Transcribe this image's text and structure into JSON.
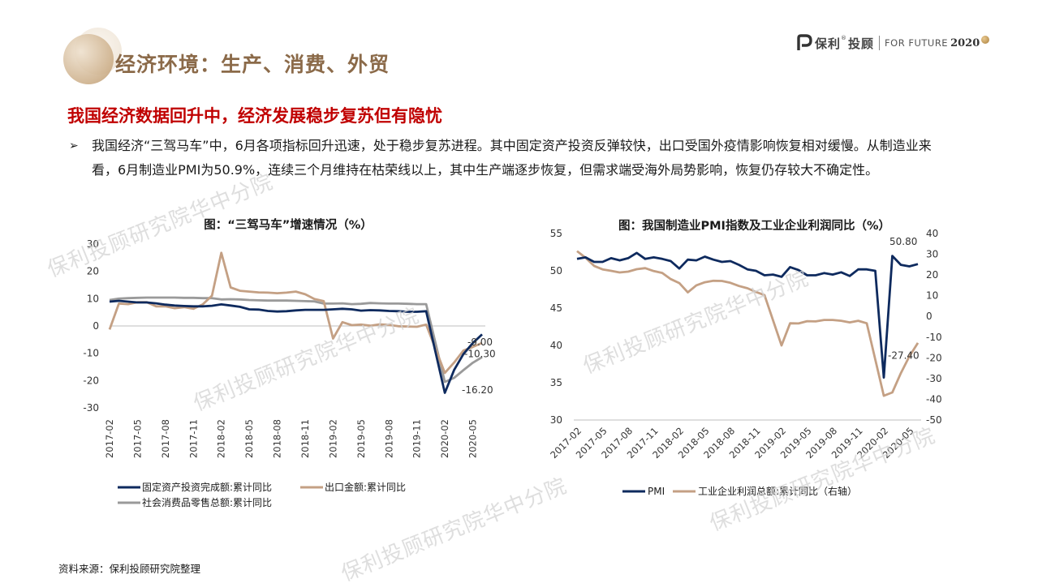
{
  "title": "经济环境：生产、消费、外贸",
  "logo": {
    "cn": "保利",
    "reg": "®",
    "cn2": "投顾",
    "en": "FOR FUTURE",
    "year": "2020"
  },
  "subtitle": "我国经济数据回升中，经济发展稳步复苏但有隐忧",
  "bullet": {
    "mark": "➢",
    "text": "我国经济“三驾马车”中，6月各项指标回升迅速，处于稳步复苏进程。其中固定资产投资反弹较快，出口受国外疫情影响恢复相对缓慢。从制造业来看，6月制造业PMI为50.9%，连续三个月维持在枯荣线以上，其中生产端逐步恢复，但需求端受海外局势影响，恢复仍存较大不确定性。"
  },
  "source": "资料来源：保利投顾研究院整理",
  "watermark": "保利投顾研究院华中分院",
  "colors": {
    "navy": "#0e2a5e",
    "tan": "#c4a084",
    "gray": "#9a9a9a"
  },
  "chart_data": [
    {
      "type": "line",
      "title": "图：“三驾马车”增速情况（%）",
      "ylim": [
        -30,
        30
      ],
      "yticks": [
        "-30",
        "-20",
        "-10",
        "0",
        "10",
        "20",
        "30"
      ],
      "xticks": [
        "2017-02",
        "2017-05",
        "2017-08",
        "2017-11",
        "2018-02",
        "2018-05",
        "2018-08",
        "2018-11",
        "2019-02",
        "2019-05",
        "2019-08",
        "2019-11",
        "2020-02",
        "2020-05"
      ],
      "x": [
        "2017-02",
        "2017-03",
        "2017-04",
        "2017-05",
        "2017-06",
        "2017-07",
        "2017-08",
        "2017-09",
        "2017-10",
        "2017-11",
        "2017-12",
        "2018-01",
        "2018-02",
        "2018-03",
        "2018-04",
        "2018-05",
        "2018-06",
        "2018-07",
        "2018-08",
        "2018-09",
        "2018-10",
        "2018-11",
        "2018-12",
        "2019-01",
        "2019-02",
        "2019-03",
        "2019-04",
        "2019-05",
        "2019-06",
        "2019-07",
        "2019-08",
        "2019-09",
        "2019-10",
        "2019-11",
        "2019-12",
        "2020-01",
        "2020-02",
        "2020-03",
        "2020-04",
        "2020-05",
        "2020-06"
      ],
      "series": [
        {
          "name": "固定资产投资完成额:累计同比",
          "color": "#0e2a5e",
          "values": [
            8.9,
            9.2,
            8.9,
            8.6,
            8.6,
            8.3,
            7.8,
            7.5,
            7.3,
            7.2,
            7.2,
            7.4,
            7.9,
            7.5,
            7.0,
            6.1,
            6.0,
            5.5,
            5.3,
            5.4,
            5.7,
            5.9,
            5.9,
            5.9,
            6.1,
            6.3,
            6.1,
            5.6,
            5.8,
            5.7,
            5.5,
            5.4,
            5.2,
            5.2,
            5.4,
            null,
            -24.5,
            -16.1,
            -10.3,
            -6.3,
            -3.1
          ]
        },
        {
          "name": "出口金额:累计同比",
          "color": "#c4a084",
          "values": [
            -1.3,
            8.2,
            8.0,
            8.7,
            8.7,
            7.2,
            7.2,
            6.5,
            6.9,
            6.3,
            7.9,
            11.1,
            26.8,
            14.1,
            12.9,
            12.6,
            12.3,
            12.2,
            12.0,
            12.2,
            12.6,
            11.6,
            9.9,
            9.1,
            -4.6,
            1.4,
            0.3,
            0.5,
            0.1,
            0.6,
            0.4,
            -0.1,
            -0.2,
            -0.3,
            0.5,
            null,
            -17.2,
            -13.4,
            -9.0,
            -7.7,
            -6.2
          ]
        },
        {
          "name": "社会消费品零售总额:累计同比",
          "color": "#9a9a9a",
          "values": [
            9.5,
            10.0,
            10.2,
            10.3,
            10.4,
            10.4,
            10.4,
            10.4,
            10.3,
            10.3,
            10.2,
            10.2,
            9.7,
            9.8,
            9.7,
            9.5,
            9.4,
            9.3,
            9.3,
            9.3,
            9.2,
            9.1,
            9.0,
            8.2,
            8.2,
            8.3,
            8.0,
            8.1,
            8.4,
            8.3,
            8.2,
            8.2,
            8.1,
            8.0,
            8.0,
            null,
            -20.5,
            -19.0,
            -16.2,
            -13.5,
            -11.4
          ]
        }
      ],
      "data_labels": [
        "-9.00",
        "-10.30",
        "-16.20"
      ]
    },
    {
      "type": "line",
      "title": "图：我国制造业PMI指数及工业企业利润同比（%）",
      "ylim_left": [
        30,
        55
      ],
      "ylim_right": [
        -50,
        40
      ],
      "yticks_left": [
        "30",
        "35",
        "40",
        "45",
        "50",
        "55"
      ],
      "yticks_right": [
        "-50",
        "-40",
        "-30",
        "-20",
        "-10",
        "0",
        "10",
        "20",
        "30",
        "40"
      ],
      "xticks": [
        "2017-02",
        "2017-05",
        "2017-08",
        "2017-11",
        "2018-02",
        "2018-05",
        "2018-08",
        "2018-11",
        "2019-02",
        "2019-05",
        "2019-08",
        "2019-11",
        "2020-02",
        "2020-05"
      ],
      "x": [
        "2017-02",
        "2017-03",
        "2017-04",
        "2017-05",
        "2017-06",
        "2017-07",
        "2017-08",
        "2017-09",
        "2017-10",
        "2017-11",
        "2017-12",
        "2018-01",
        "2018-02",
        "2018-03",
        "2018-04",
        "2018-05",
        "2018-06",
        "2018-07",
        "2018-08",
        "2018-09",
        "2018-10",
        "2018-11",
        "2018-12",
        "2019-01",
        "2019-02",
        "2019-03",
        "2019-04",
        "2019-05",
        "2019-06",
        "2019-07",
        "2019-08",
        "2019-09",
        "2019-10",
        "2019-11",
        "2019-12",
        "2020-01",
        "2020-02",
        "2020-03",
        "2020-04",
        "2020-05",
        "2020-06"
      ],
      "series": [
        {
          "name": "PMI",
          "axis": "left",
          "color": "#0e2a5e",
          "values": [
            51.6,
            51.8,
            51.2,
            51.2,
            51.7,
            51.4,
            51.7,
            52.4,
            51.6,
            51.8,
            51.6,
            51.3,
            50.3,
            51.5,
            51.4,
            51.9,
            51.5,
            51.2,
            51.3,
            50.8,
            50.2,
            50.0,
            49.4,
            49.5,
            49.2,
            50.5,
            50.1,
            49.4,
            49.4,
            49.7,
            49.5,
            49.8,
            49.3,
            50.2,
            50.2,
            50.0,
            35.7,
            52.0,
            50.8,
            50.6,
            50.9
          ]
        },
        {
          "name": "工业企业利润总额:累计同比（右轴）",
          "axis": "right",
          "color": "#c4a084",
          "values": [
            31.5,
            28.3,
            24.4,
            22.7,
            22.0,
            21.2,
            21.6,
            22.8,
            23.3,
            21.9,
            21.0,
            18.0,
            16.1,
            11.6,
            15.0,
            16.5,
            17.2,
            17.1,
            16.2,
            14.7,
            13.6,
            11.8,
            10.3,
            null,
            -14.0,
            -3.3,
            -3.4,
            -2.3,
            -2.4,
            -1.7,
            -1.7,
            -2.1,
            -2.9,
            -2.1,
            -3.3,
            null,
            -38.3,
            -36.7,
            -27.4,
            -19.3,
            -12.8
          ]
        }
      ],
      "data_labels": [
        "50.80",
        "-27.40"
      ]
    }
  ]
}
